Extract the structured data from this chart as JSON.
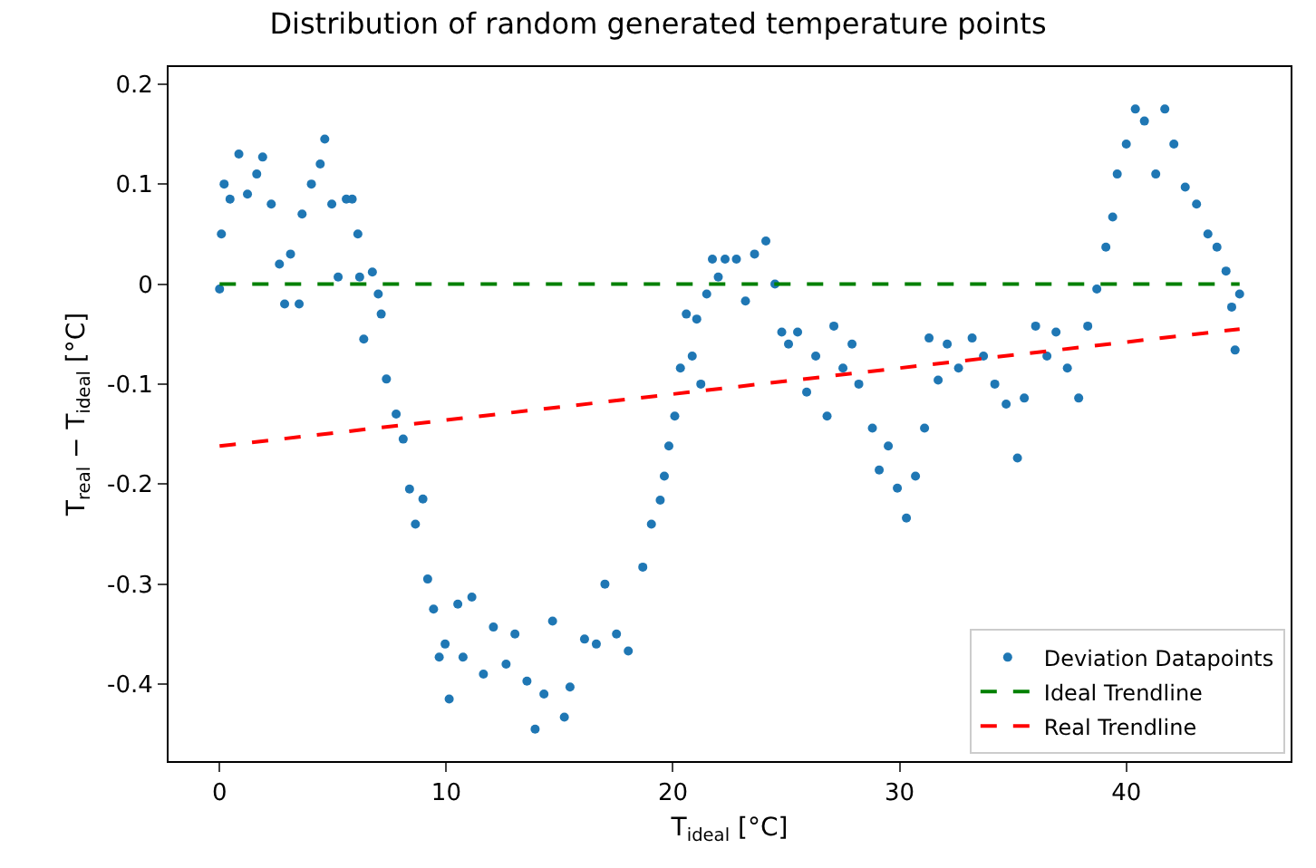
{
  "chart_data": {
    "type": "scatter",
    "title": "Distribution of random generated temperature points",
    "xlabel": "T$_{ideal}$ [°C]",
    "ylabel": "T$_{real}$ − T$_{ideal}$ [°C]",
    "xlim": [
      -2.25,
      47.25
    ],
    "xticks": [
      0,
      10,
      20,
      30,
      40
    ],
    "ylim": [
      -0.477,
      0.217
    ],
    "yticks": [
      -0.4,
      -0.3,
      -0.2,
      -0.1,
      0.0,
      0.1,
      0.2
    ],
    "grid": false,
    "legend": "bottom right",
    "series": [
      {
        "name": "Deviation Datapoints",
        "marker": "circle",
        "color": "#1f77b4",
        "x": [
          0,
          0.08,
          0.2,
          0.46,
          0.85,
          1.23,
          1.64,
          1.9,
          2.28,
          2.64,
          2.87,
          3.13,
          3.51,
          3.64,
          4.05,
          4.44,
          4.64,
          4.95,
          5.23,
          5.59,
          5.85,
          6.1,
          6.18,
          6.36,
          6.74,
          7.0,
          7.13,
          7.36,
          7.79,
          8.1,
          8.38,
          8.64,
          8.97,
          9.18,
          9.44,
          9.69,
          9.95,
          10.13,
          10.51,
          10.74,
          11.13,
          11.64,
          12.08,
          12.64,
          13.03,
          13.56,
          13.92,
          14.31,
          14.69,
          15.21,
          15.46,
          16.1,
          16.62,
          17.0,
          17.51,
          18.03,
          18.67,
          19.05,
          19.44,
          19.62,
          19.82,
          20.08,
          20.33,
          20.59,
          20.85,
          21.05,
          21.23,
          21.49,
          21.74,
          22.0,
          22.3,
          22.8,
          23.2,
          23.6,
          24.1,
          24.5,
          24.8,
          25.1,
          25.5,
          25.9,
          26.3,
          26.8,
          27.1,
          27.5,
          27.9,
          28.2,
          28.8,
          29.1,
          29.5,
          29.9,
          30.3,
          30.7,
          31.1,
          31.3,
          31.7,
          32.1,
          32.6,
          33.2,
          33.7,
          34.2,
          34.7,
          35.2,
          35.5,
          36.0,
          36.5,
          36.9,
          37.4,
          37.9,
          38.3,
          38.7,
          39.1,
          39.4,
          39.6,
          40.0,
          40.4,
          40.8,
          41.3,
          41.7,
          42.1,
          42.6,
          43.1,
          43.6,
          44.0,
          44.4,
          44.65,
          44.8,
          45.0
        ],
        "values": [
          -0.005,
          0.05,
          0.1,
          0.085,
          0.13,
          0.09,
          0.11,
          0.127,
          0.08,
          0.02,
          -0.02,
          0.03,
          -0.02,
          0.07,
          0.1,
          0.12,
          0.145,
          0.08,
          0.007,
          0.085,
          0.085,
          0.05,
          0.007,
          -0.055,
          0.012,
          -0.01,
          -0.03,
          -0.095,
          -0.13,
          -0.155,
          -0.205,
          -0.24,
          -0.215,
          -0.295,
          -0.325,
          -0.373,
          -0.36,
          -0.415,
          -0.32,
          -0.373,
          -0.313,
          -0.39,
          -0.343,
          -0.38,
          -0.35,
          -0.397,
          -0.445,
          -0.41,
          -0.337,
          -0.433,
          -0.403,
          -0.355,
          -0.36,
          -0.3,
          -0.35,
          -0.367,
          -0.283,
          -0.24,
          -0.216,
          -0.192,
          -0.162,
          -0.132,
          -0.084,
          -0.03,
          -0.072,
          -0.035,
          -0.1,
          -0.01,
          0.025,
          0.007,
          0.025,
          0.025,
          -0.017,
          0.03,
          0.043,
          0.0,
          -0.048,
          -0.06,
          -0.048,
          -0.108,
          -0.072,
          -0.132,
          -0.042,
          -0.084,
          -0.06,
          -0.1,
          -0.144,
          -0.186,
          -0.162,
          -0.204,
          -0.234,
          -0.192,
          -0.144,
          -0.054,
          -0.096,
          -0.06,
          -0.084,
          -0.054,
          -0.072,
          -0.1,
          -0.12,
          -0.174,
          -0.114,
          -0.042,
          -0.072,
          -0.048,
          -0.084,
          -0.114,
          -0.042,
          -0.005,
          0.037,
          0.067,
          0.11,
          0.14,
          0.175,
          0.163,
          0.11,
          0.175,
          0.14,
          0.097,
          0.08,
          0.05,
          0.037,
          0.013,
          -0.023,
          -0.066,
          -0.01
        ]
      },
      {
        "name": "Ideal Trendline",
        "type": "line",
        "line_style": "dashed",
        "color": "#008000",
        "x": [
          0,
          45
        ],
        "values": [
          0,
          0
        ]
      },
      {
        "name": "Real Trendline",
        "type": "line",
        "line_style": "dashed",
        "color": "#ff0000",
        "x": [
          0,
          45
        ],
        "values": [
          -0.162,
          -0.045
        ]
      }
    ]
  }
}
